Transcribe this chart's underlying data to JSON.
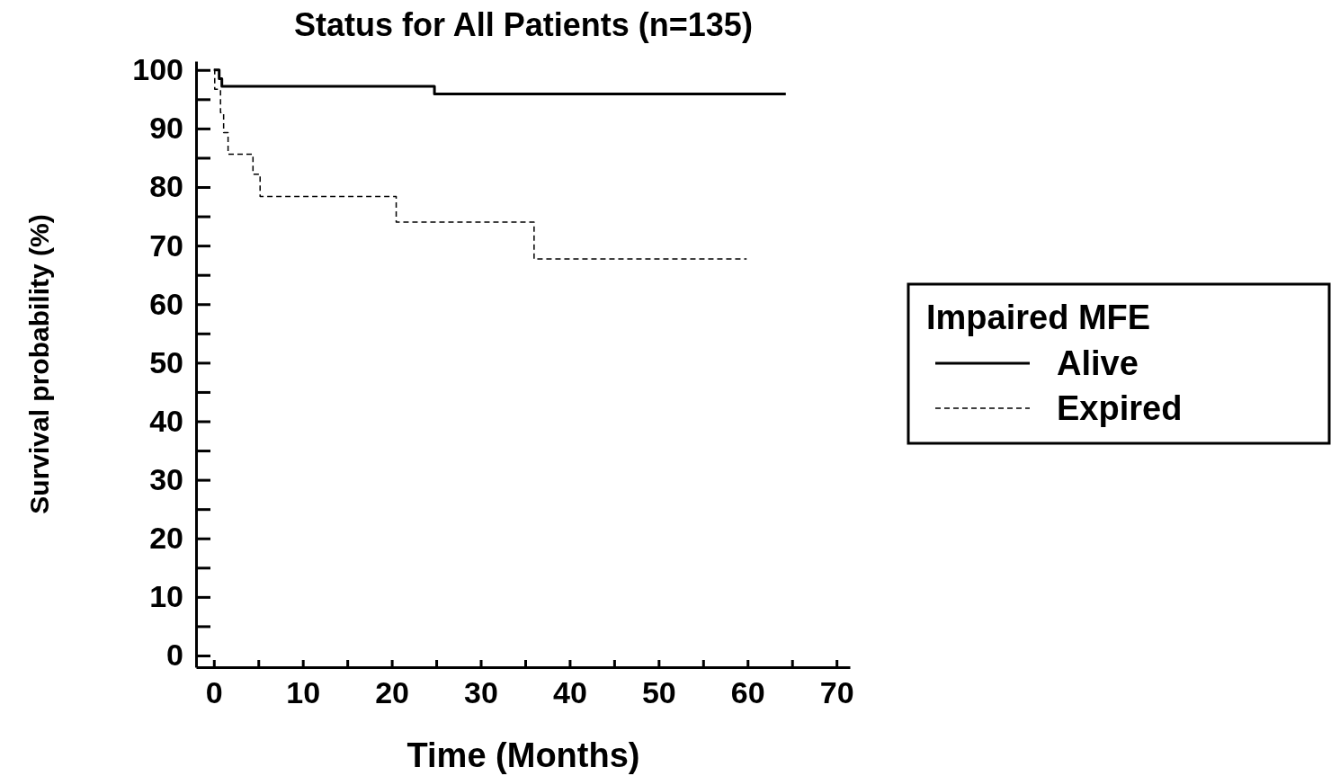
{
  "chart_data": {
    "type": "step",
    "title": "Status for All Patients (n=135)",
    "xlabel": "Time (Months)",
    "ylabel": "Survival probability (%)",
    "legend_title": "Impaired MFE",
    "legend": "right",
    "xlim": [
      -2,
      71.5
    ],
    "ylim": [
      -2,
      101.5
    ],
    "xticks": [
      0,
      {
        "value": 5,
        "label": null
      },
      10,
      {
        "value": 15,
        "label": null
      },
      20,
      {
        "value": 25,
        "label": null
      },
      30,
      {
        "value": 35,
        "label": null
      },
      40,
      {
        "value": 45,
        "label": null
      },
      50,
      {
        "value": 55,
        "label": null
      },
      60,
      {
        "value": 65,
        "label": null
      },
      70
    ],
    "yticks": [
      0,
      {
        "value": 5,
        "label": null
      },
      10,
      {
        "value": 15,
        "label": null
      },
      20,
      {
        "value": 25,
        "label": null
      },
      30,
      {
        "value": 35,
        "label": null
      },
      40,
      {
        "value": 45,
        "label": null
      },
      50,
      {
        "value": 55,
        "label": null
      },
      60,
      {
        "value": 65,
        "label": null
      },
      70,
      {
        "value": 75,
        "label": null
      },
      80,
      {
        "value": 85,
        "label": null
      },
      90,
      {
        "value": 95,
        "label": null
      },
      100
    ],
    "series": [
      {
        "name": "Alive",
        "color": "#000000",
        "line_style": "solid",
        "x": [
          0,
          0.6,
          0.9,
          24.8,
          64.3
        ],
        "values": [
          100,
          98.5,
          97.2,
          95.9,
          95.9
        ]
      },
      {
        "name": "Expired",
        "color": "#000000",
        "line_style": "dashed",
        "x": [
          0,
          0.1,
          0.75,
          1.1,
          1.6,
          4.4,
          5.2,
          20.5,
          36.0,
          59.9
        ],
        "values": [
          100,
          96.7,
          92.7,
          89.3,
          85.6,
          82.2,
          78.4,
          74.0,
          67.7,
          67.7
        ]
      }
    ]
  }
}
